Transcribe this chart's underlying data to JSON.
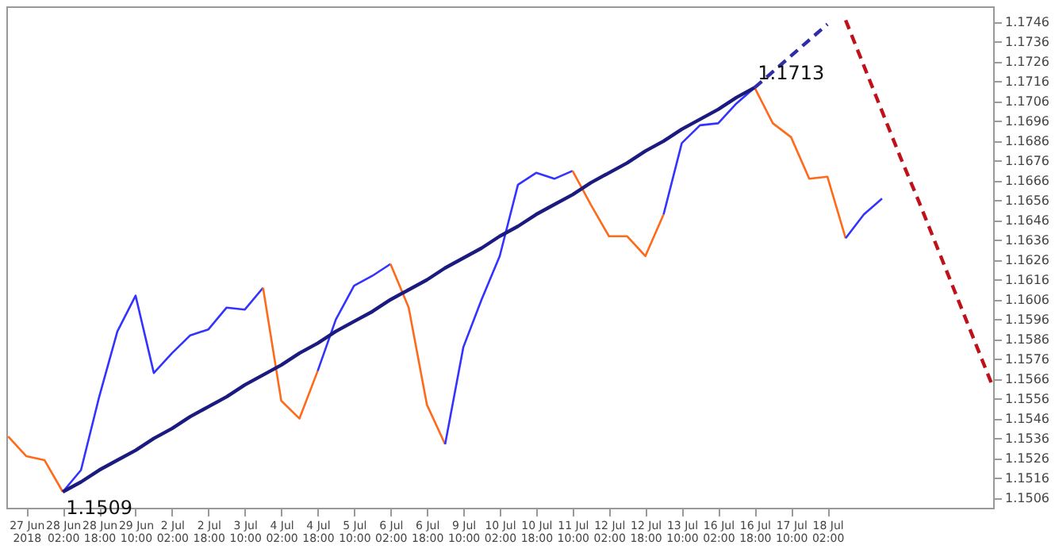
{
  "chart_data": {
    "type": "line",
    "ylim": [
      1.1501,
      1.1754
    ],
    "categories": [
      null,
      "27 Jun 2018",
      null,
      "28 Jun 02:00",
      null,
      "28 Jun 18:00",
      null,
      "29 Jun 10:00",
      null,
      "2 Jul 02:00",
      null,
      "2 Jul 18:00",
      null,
      "3 Jul 10:00",
      null,
      "4 Jul 02:00",
      null,
      "4 Jul 18:00",
      null,
      "5 Jul 10:00",
      null,
      "6 Jul 02:00",
      null,
      "6 Jul 18:00",
      null,
      "9 Jul 10:00",
      null,
      "10 Jul 02:00",
      null,
      "10 Jul 18:00",
      null,
      "11 Jul 10:00",
      null,
      "12 Jul 02:00",
      null,
      "12 Jul 18:00",
      null,
      "13 Jul 10:00",
      null,
      "16 Jul 02:00",
      null,
      "16 Jul 18:00",
      null,
      "17 Jul 10:00",
      null,
      "18 Jul 02:00",
      null,
      null,
      null,
      null,
      null,
      null,
      null,
      null,
      null
    ],
    "yticks": [
      1.1506,
      1.1516,
      1.1526,
      1.1536,
      1.1546,
      1.1556,
      1.1566,
      1.1576,
      1.1586,
      1.1596,
      1.1606,
      1.1616,
      1.1626,
      1.1636,
      1.1646,
      1.1656,
      1.1666,
      1.1676,
      1.1686,
      1.1696,
      1.1706,
      1.1716,
      1.1726,
      1.1736,
      1.1746
    ],
    "grid": false,
    "marker": "none",
    "series": [
      {
        "color": "#ff6a1a",
        "values": [
          1.1537,
          1.1527,
          1.1525,
          1.1509,
          null,
          null,
          null,
          null,
          null,
          null,
          null,
          null,
          null,
          null,
          null,
          null,
          null,
          null,
          null,
          null,
          null,
          null,
          null,
          null,
          null,
          null,
          null,
          null,
          null,
          null,
          null,
          null,
          null,
          null,
          null,
          null,
          null,
          null,
          null,
          null,
          null,
          null,
          null,
          null,
          null,
          null,
          null,
          null,
          null,
          null,
          null,
          null,
          null,
          null,
          null
        ]
      },
      {
        "color": "#3333ff",
        "values": [
          null,
          null,
          null,
          1.1509,
          1.152,
          1.1557,
          1.159,
          1.1608,
          1.1569,
          1.1579,
          1.1588,
          1.1591,
          1.1602,
          1.1601,
          1.1612,
          null,
          null,
          null,
          null,
          null,
          null,
          null,
          null,
          null,
          null,
          null,
          null,
          null,
          null,
          null,
          null,
          null,
          null,
          null,
          null,
          null,
          null,
          null,
          null,
          null,
          null,
          null,
          null,
          null,
          null,
          null,
          null,
          null,
          null,
          null,
          null,
          null,
          null,
          null,
          null
        ]
      },
      {
        "color": "#ff6a1a",
        "values": [
          null,
          null,
          null,
          null,
          null,
          null,
          null,
          null,
          null,
          null,
          null,
          null,
          null,
          null,
          1.1612,
          1.1555,
          1.1546,
          1.157,
          null,
          null,
          null,
          null,
          null,
          null,
          null,
          null,
          null,
          null,
          null,
          null,
          null,
          null,
          null,
          null,
          null,
          null,
          null,
          null,
          null,
          null,
          null,
          null,
          null,
          null,
          null,
          null,
          null,
          null,
          null,
          null,
          null,
          null,
          null,
          null,
          null
        ]
      },
      {
        "color": "#3333ff",
        "values": [
          null,
          null,
          null,
          null,
          null,
          null,
          null,
          null,
          null,
          null,
          null,
          null,
          null,
          null,
          null,
          null,
          null,
          1.157,
          1.1596,
          1.1613,
          1.1618,
          1.1624,
          null,
          null,
          null,
          null,
          null,
          null,
          null,
          null,
          null,
          null,
          null,
          null,
          null,
          null,
          null,
          null,
          null,
          null,
          null,
          null,
          null,
          null,
          null,
          null,
          null,
          null,
          null,
          null,
          null,
          null,
          null,
          null,
          null
        ]
      },
      {
        "color": "#ff6a1a",
        "values": [
          null,
          null,
          null,
          null,
          null,
          null,
          null,
          null,
          null,
          null,
          null,
          null,
          null,
          null,
          null,
          null,
          null,
          null,
          null,
          null,
          null,
          1.1624,
          1.1602,
          1.1553,
          1.1533,
          null,
          null,
          null,
          null,
          null,
          null,
          null,
          null,
          null,
          null,
          null,
          null,
          null,
          null,
          null,
          null,
          null,
          null,
          null,
          null,
          null,
          null,
          null,
          null,
          null,
          null,
          null,
          null,
          null,
          null
        ]
      },
      {
        "color": "#3333ff",
        "values": [
          null,
          null,
          null,
          null,
          null,
          null,
          null,
          null,
          null,
          null,
          null,
          null,
          null,
          null,
          null,
          null,
          null,
          null,
          null,
          null,
          null,
          null,
          null,
          null,
          1.1533,
          1.1582,
          1.1606,
          1.1628,
          1.1664,
          1.167,
          1.1667,
          1.1671,
          null,
          null,
          null,
          null,
          null,
          null,
          null,
          null,
          null,
          null,
          null,
          null,
          null,
          null,
          null,
          null,
          null,
          null,
          null,
          null,
          null,
          null,
          null
        ]
      },
      {
        "color": "#ff6a1a",
        "values": [
          null,
          null,
          null,
          null,
          null,
          null,
          null,
          null,
          null,
          null,
          null,
          null,
          null,
          null,
          null,
          null,
          null,
          null,
          null,
          null,
          null,
          null,
          null,
          null,
          null,
          null,
          null,
          null,
          null,
          null,
          null,
          1.1671,
          1.1654,
          1.1638,
          1.1638,
          1.1628,
          1.1649,
          null,
          null,
          null,
          null,
          null,
          null,
          null,
          null,
          null,
          null,
          null,
          null,
          null,
          null,
          null,
          null,
          null,
          null
        ]
      },
      {
        "color": "#3333ff",
        "values": [
          null,
          null,
          null,
          null,
          null,
          null,
          null,
          null,
          null,
          null,
          null,
          null,
          null,
          null,
          null,
          null,
          null,
          null,
          null,
          null,
          null,
          null,
          null,
          null,
          null,
          null,
          null,
          null,
          null,
          null,
          null,
          null,
          null,
          null,
          null,
          null,
          1.1649,
          1.1685,
          1.1694,
          1.1695,
          1.1705,
          1.1713,
          null,
          null,
          null,
          null,
          null,
          null,
          null,
          null,
          null,
          null,
          null,
          null,
          null
        ]
      },
      {
        "color": "#ff6a1a",
        "values": [
          null,
          null,
          null,
          null,
          null,
          null,
          null,
          null,
          null,
          null,
          null,
          null,
          null,
          null,
          null,
          null,
          null,
          null,
          null,
          null,
          null,
          null,
          null,
          null,
          null,
          null,
          null,
          null,
          null,
          null,
          null,
          null,
          null,
          null,
          null,
          null,
          null,
          null,
          null,
          null,
          null,
          1.1713,
          1.1695,
          1.1688,
          1.1667,
          1.1668,
          1.1637,
          null,
          null,
          null,
          null,
          null,
          null,
          null,
          null
        ]
      },
      {
        "color": "#3333ff",
        "values": [
          null,
          null,
          null,
          null,
          null,
          null,
          null,
          null,
          null,
          null,
          null,
          null,
          null,
          null,
          null,
          null,
          null,
          null,
          null,
          null,
          null,
          null,
          null,
          null,
          null,
          null,
          null,
          null,
          null,
          null,
          null,
          null,
          null,
          null,
          null,
          null,
          null,
          null,
          null,
          null,
          null,
          null,
          null,
          null,
          null,
          null,
          1.1637,
          1.1649,
          1.1657,
          null,
          null,
          null,
          null,
          null,
          null
        ]
      },
      {
        "color": "#1a1a80",
        "line_style": "solid",
        "values": [
          null,
          null,
          null,
          1.1509,
          1.1514,
          1.152,
          1.1525,
          1.153,
          1.1536,
          1.1541,
          1.1547,
          1.1552,
          1.1557,
          1.1563,
          1.1568,
          1.1573,
          1.1579,
          1.1584,
          1.159,
          1.1595,
          1.16,
          1.1606,
          1.1611,
          1.1616,
          1.1622,
          1.1627,
          1.1632,
          1.1638,
          1.1643,
          1.1649,
          1.1654,
          1.1659,
          1.1665,
          1.167,
          1.1675,
          1.1681,
          1.1686,
          1.1692,
          1.1697,
          1.1702,
          1.1708,
          1.1713,
          null,
          null,
          null,
          null,
          null,
          null,
          null,
          null,
          null,
          null,
          null,
          null,
          null
        ]
      },
      {
        "color": "#2e2ea8",
        "line_style": "dashed",
        "values": [
          null,
          null,
          null,
          null,
          null,
          null,
          null,
          null,
          null,
          null,
          null,
          null,
          null,
          null,
          null,
          null,
          null,
          null,
          null,
          null,
          null,
          null,
          null,
          null,
          null,
          null,
          null,
          null,
          null,
          null,
          null,
          null,
          null,
          null,
          null,
          null,
          null,
          null,
          null,
          null,
          null,
          1.1713,
          1.1721,
          1.1729,
          1.1737,
          1.1745,
          null,
          null,
          null,
          null,
          null,
          null,
          null,
          null,
          null
        ]
      },
      {
        "color": "#c0101a",
        "line_style": "dashed",
        "values": [
          null,
          null,
          null,
          null,
          null,
          null,
          null,
          null,
          null,
          null,
          null,
          null,
          null,
          null,
          null,
          null,
          null,
          null,
          null,
          null,
          null,
          null,
          null,
          null,
          null,
          null,
          null,
          null,
          null,
          null,
          null,
          null,
          null,
          null,
          null,
          null,
          null,
          null,
          null,
          null,
          null,
          null,
          null,
          null,
          null,
          null,
          1.1747,
          1.1724,
          1.1701,
          1.1678,
          1.1656,
          1.1633,
          1.161,
          1.1587,
          1.1564
        ]
      }
    ],
    "annotations": [
      "1.1509",
      "1.1713"
    ]
  }
}
